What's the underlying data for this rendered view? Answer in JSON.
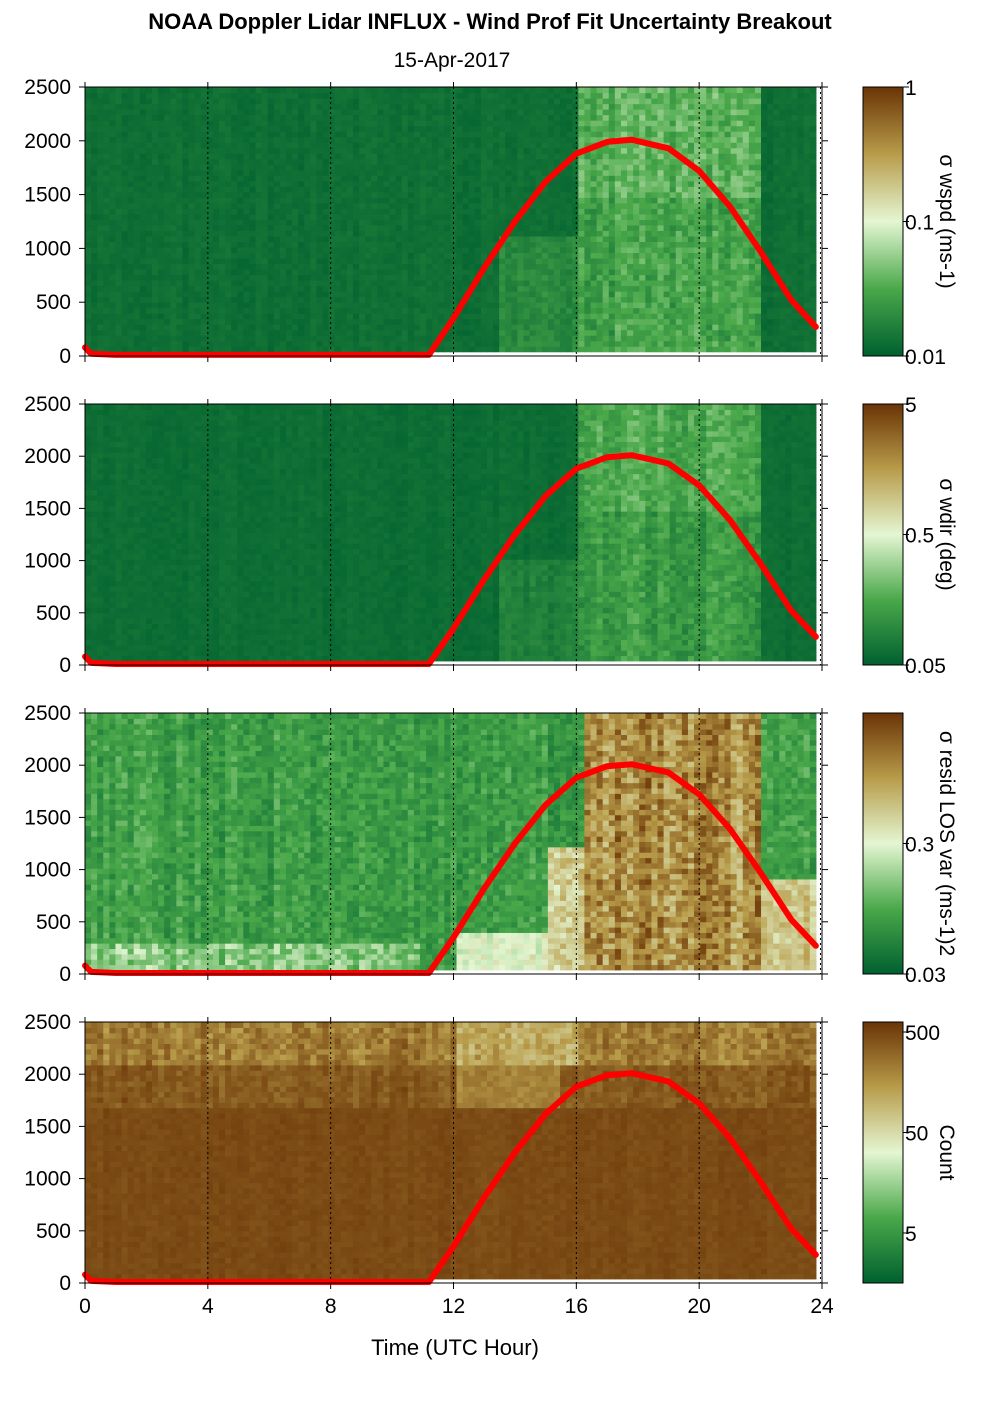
{
  "title": "NOAA Doppler Lidar INFLUX - Wind Prof Fit Uncertainty Breakout",
  "subtitle": "15-Apr-2017",
  "xlabel": "Time (UTC Hour)",
  "colors": {
    "low": "#00602f",
    "mid": "#e4f6d2",
    "high": "#6a3406",
    "sun_curve": "#ff0000",
    "grid": "#000000"
  },
  "chart_data": [
    {
      "type": "heatmap",
      "name": "sigma_wspd",
      "colorbar_label": "σ wspd (ms-1)",
      "colorbar_ticks": [
        "1",
        "0.1",
        "0.01"
      ],
      "x": [
        0,
        24
      ],
      "xlim": [
        0,
        24
      ],
      "ylim": [
        0,
        2500
      ],
      "xticks": [
        "0",
        "4",
        "8",
        "12",
        "16",
        "20",
        "24"
      ],
      "yticks": [
        "0",
        "500",
        "1000",
        "1500",
        "2000",
        "2500"
      ],
      "grid_x": [
        4,
        8,
        12,
        16,
        20
      ],
      "field": "low values overall; moderately higher (lighter green) after ~16 UTC"
    },
    {
      "type": "heatmap",
      "name": "sigma_wdir",
      "colorbar_label": "σ wdir (deg)",
      "colorbar_ticks": [
        "5",
        "0.5",
        "0.05"
      ],
      "x": [
        0,
        24
      ],
      "xlim": [
        0,
        24
      ],
      "ylim": [
        0,
        2500
      ],
      "xticks": [
        "0",
        "4",
        "8",
        "12",
        "16",
        "20",
        "24"
      ],
      "yticks": [
        "0",
        "500",
        "1000",
        "1500",
        "2000",
        "2500"
      ],
      "grid_x": [
        4,
        8,
        12,
        16,
        20
      ],
      "field": "low values overall; moderately higher (lighter green) after ~16 UTC"
    },
    {
      "type": "heatmap",
      "name": "sigma_resid_los_var",
      "colorbar_label": "σ resid LOS var (ms-1)2",
      "colorbar_ticks": [
        "0.3",
        "0.03"
      ],
      "x": [
        0,
        24
      ],
      "xlim": [
        0,
        24
      ],
      "ylim": [
        0,
        2500
      ],
      "xticks": [
        "0",
        "4",
        "8",
        "12",
        "16",
        "20",
        "24"
      ],
      "yticks": [
        "0",
        "500",
        "1000",
        "1500",
        "2000",
        "2500"
      ],
      "grid_x": [
        4,
        8,
        12,
        16,
        20
      ],
      "field": "green at night, brown/tan (high) during daytime 16-22 UTC"
    },
    {
      "type": "heatmap",
      "name": "count",
      "colorbar_label": "Count",
      "colorbar_ticks": [
        "500",
        "50",
        "5"
      ],
      "x": [
        0,
        24
      ],
      "xlim": [
        0,
        24
      ],
      "ylim": [
        0,
        2500
      ],
      "xticks": [
        "0",
        "4",
        "8",
        "12",
        "16",
        "20",
        "24"
      ],
      "yticks": [
        "0",
        "500",
        "1000",
        "1500",
        "2000",
        "2500"
      ],
      "grid_x": [
        4,
        8,
        12,
        16,
        20
      ],
      "field": "mostly brown (high counts); lighter tan near the top 2000-2500 m"
    }
  ],
  "sun_curve": {
    "description": "solar elevation overlay",
    "x": [
      0,
      0.2,
      1,
      11.2,
      12,
      13,
      14,
      15,
      16,
      17,
      17.8,
      19,
      20,
      21,
      22,
      23,
      23.8
    ],
    "y": [
      80,
      20,
      10,
      10,
      350,
      820,
      1250,
      1620,
      1880,
      1990,
      2010,
      1930,
      1720,
      1390,
      970,
      520,
      270
    ]
  }
}
